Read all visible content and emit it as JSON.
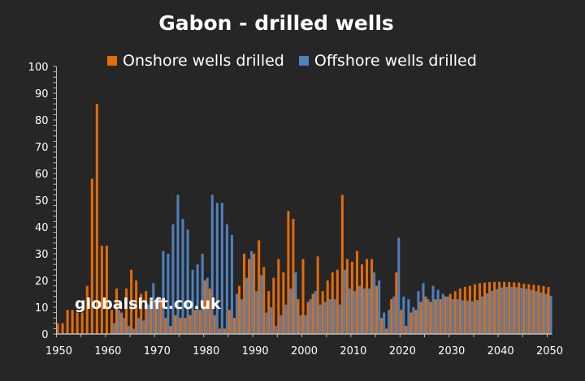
{
  "chart_data": {
    "type": "bar",
    "title": "Gabon - drilled wells",
    "xlabel": "",
    "ylabel": "",
    "ylim": [
      0,
      100
    ],
    "yticks": [
      0,
      10,
      20,
      30,
      40,
      50,
      60,
      70,
      80,
      90,
      100
    ],
    "xtick_labels": [
      "1950",
      "1960",
      "1970",
      "1980",
      "1990",
      "2000",
      "2010",
      "2020",
      "2030",
      "2040",
      "2050"
    ],
    "grid": false,
    "legend_position": "top-center",
    "x_start": 1950,
    "x_end": 2050,
    "series": [
      {
        "name": "Onshore wells drilled",
        "color": "#e36c09",
        "values": [
          4,
          4,
          9,
          9,
          8,
          8,
          18,
          58,
          86,
          33,
          33,
          9,
          17,
          8,
          17,
          24,
          20,
          15,
          16,
          13,
          12,
          13,
          6,
          3,
          7,
          6,
          6,
          7,
          9,
          9,
          20,
          17,
          7,
          2,
          2,
          9,
          6,
          18,
          30,
          28,
          30,
          35,
          25,
          16,
          21,
          28,
          23,
          46,
          43,
          13,
          28,
          12,
          15,
          29,
          16,
          20,
          23,
          24,
          52,
          28,
          27,
          31,
          26,
          28,
          28,
          18,
          6,
          2,
          13,
          23,
          9,
          3,
          8,
          9,
          12,
          14,
          12,
          13,
          13,
          14,
          15,
          16,
          17,
          17.6,
          18,
          18.6,
          19,
          19.2,
          19.4,
          19.5,
          19.5,
          19.5,
          19.4,
          19.3,
          19.2,
          18.8,
          18.6,
          18.4,
          18.2,
          17.9,
          17.6
        ]
      },
      {
        "name": "Offshore wells drilled",
        "color": "#4f81bd",
        "values": [
          0,
          0,
          0,
          0,
          0,
          0,
          0,
          0,
          0,
          0,
          0,
          4,
          9,
          6,
          3,
          2,
          6,
          5,
          11,
          19,
          14,
          31,
          30,
          41,
          52,
          43,
          39,
          24,
          26,
          30,
          21,
          52,
          49,
          49,
          41,
          37,
          15,
          13,
          21,
          31,
          16,
          22,
          8,
          10,
          3,
          7,
          11,
          17,
          23,
          7,
          7,
          13,
          16,
          11,
          12,
          13,
          13,
          11,
          24,
          17,
          16,
          18,
          17,
          17,
          23,
          20,
          8,
          9,
          14,
          36,
          14,
          13,
          10,
          16,
          19,
          13,
          18,
          16.5,
          15,
          14,
          13,
          13,
          12.6,
          12.5,
          12.2,
          12.7,
          14,
          15.2,
          16.1,
          16.8,
          17.4,
          17.6,
          17.6,
          17.5,
          17.2,
          16.9,
          16.5,
          16,
          15.5,
          15,
          14.3
        ]
      }
    ],
    "annotations": [
      "globalshift.co.uk"
    ]
  },
  "watermark": "globalshift.co.uk"
}
